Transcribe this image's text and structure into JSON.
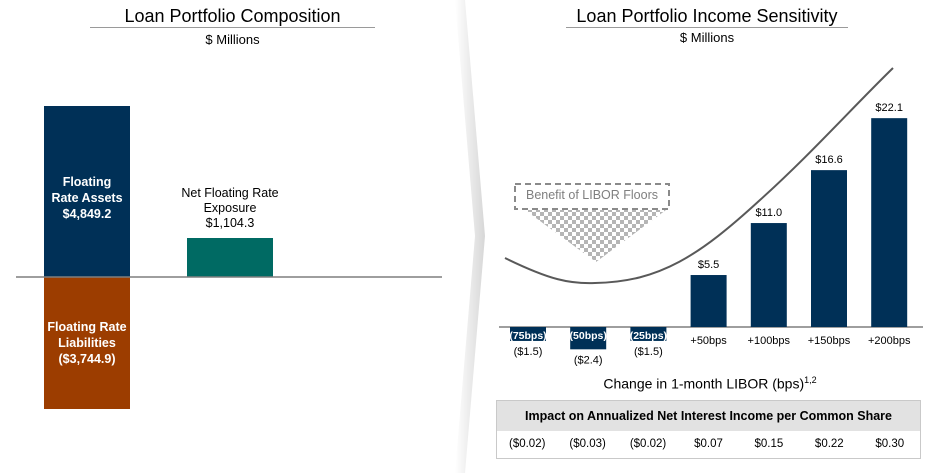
{
  "left_panel": {
    "title": "Loan Portfolio Composition",
    "subtitle": "$ Millions",
    "assets": {
      "label_line1": "Floating",
      "label_line2": "Rate Assets",
      "value_text": "$4,849.2",
      "color": "#003057"
    },
    "liabilities": {
      "label_line1": "Floating Rate",
      "label_line2": "Liabilities",
      "value_text": "($3,744.9)",
      "color": "#9c3d00"
    },
    "net": {
      "label_line1": "Net Floating Rate",
      "label_line2": "Exposure",
      "value_text": "$1,104.3",
      "color": "#006a63"
    }
  },
  "chart_data": [
    {
      "type": "bar",
      "title": "Loan Portfolio Composition",
      "subtitle": "$ Millions",
      "categories": [
        "Floating Rate Assets",
        "Floating Rate Liabilities",
        "Net Floating Rate Exposure"
      ],
      "values": [
        4849.2,
        -3744.9,
        1104.3
      ]
    },
    {
      "type": "bar",
      "title": "Loan Portfolio Income Sensitivity",
      "subtitle": "$ Millions",
      "categories": [
        "(75bps)",
        "(50bps)",
        "(25bps)",
        "+50bps",
        "+100bps",
        "+150bps",
        "+200bps"
      ],
      "values": [
        -1.5,
        -2.4,
        -1.5,
        5.5,
        11.0,
        16.6,
        22.1
      ],
      "value_labels": [
        "($1.5)",
        "($2.4)",
        "($1.5)",
        "$5.5",
        "$11.0",
        "$16.6",
        "$22.1"
      ],
      "xlabel": "Change in 1-month LIBOR (bps)",
      "xlabel_superscript": "1,2",
      "annotation": "Benefit of LIBOR Floors",
      "bar_color": "#003057"
    }
  ],
  "right_panel": {
    "title": "Loan Portfolio Income Sensitivity",
    "subtitle": "$ Millions",
    "xlabel": "Change in 1-month LIBOR (bps)",
    "xlabel_sup": "1,2",
    "annotation": "Benefit of LIBOR Floors"
  },
  "table": {
    "header": "Impact on Annualized Net Interest Income per Common Share",
    "values": [
      "($0.02)",
      "($0.03)",
      "($0.02)",
      "$0.07",
      "$0.15",
      "$0.22",
      "$0.30"
    ]
  }
}
